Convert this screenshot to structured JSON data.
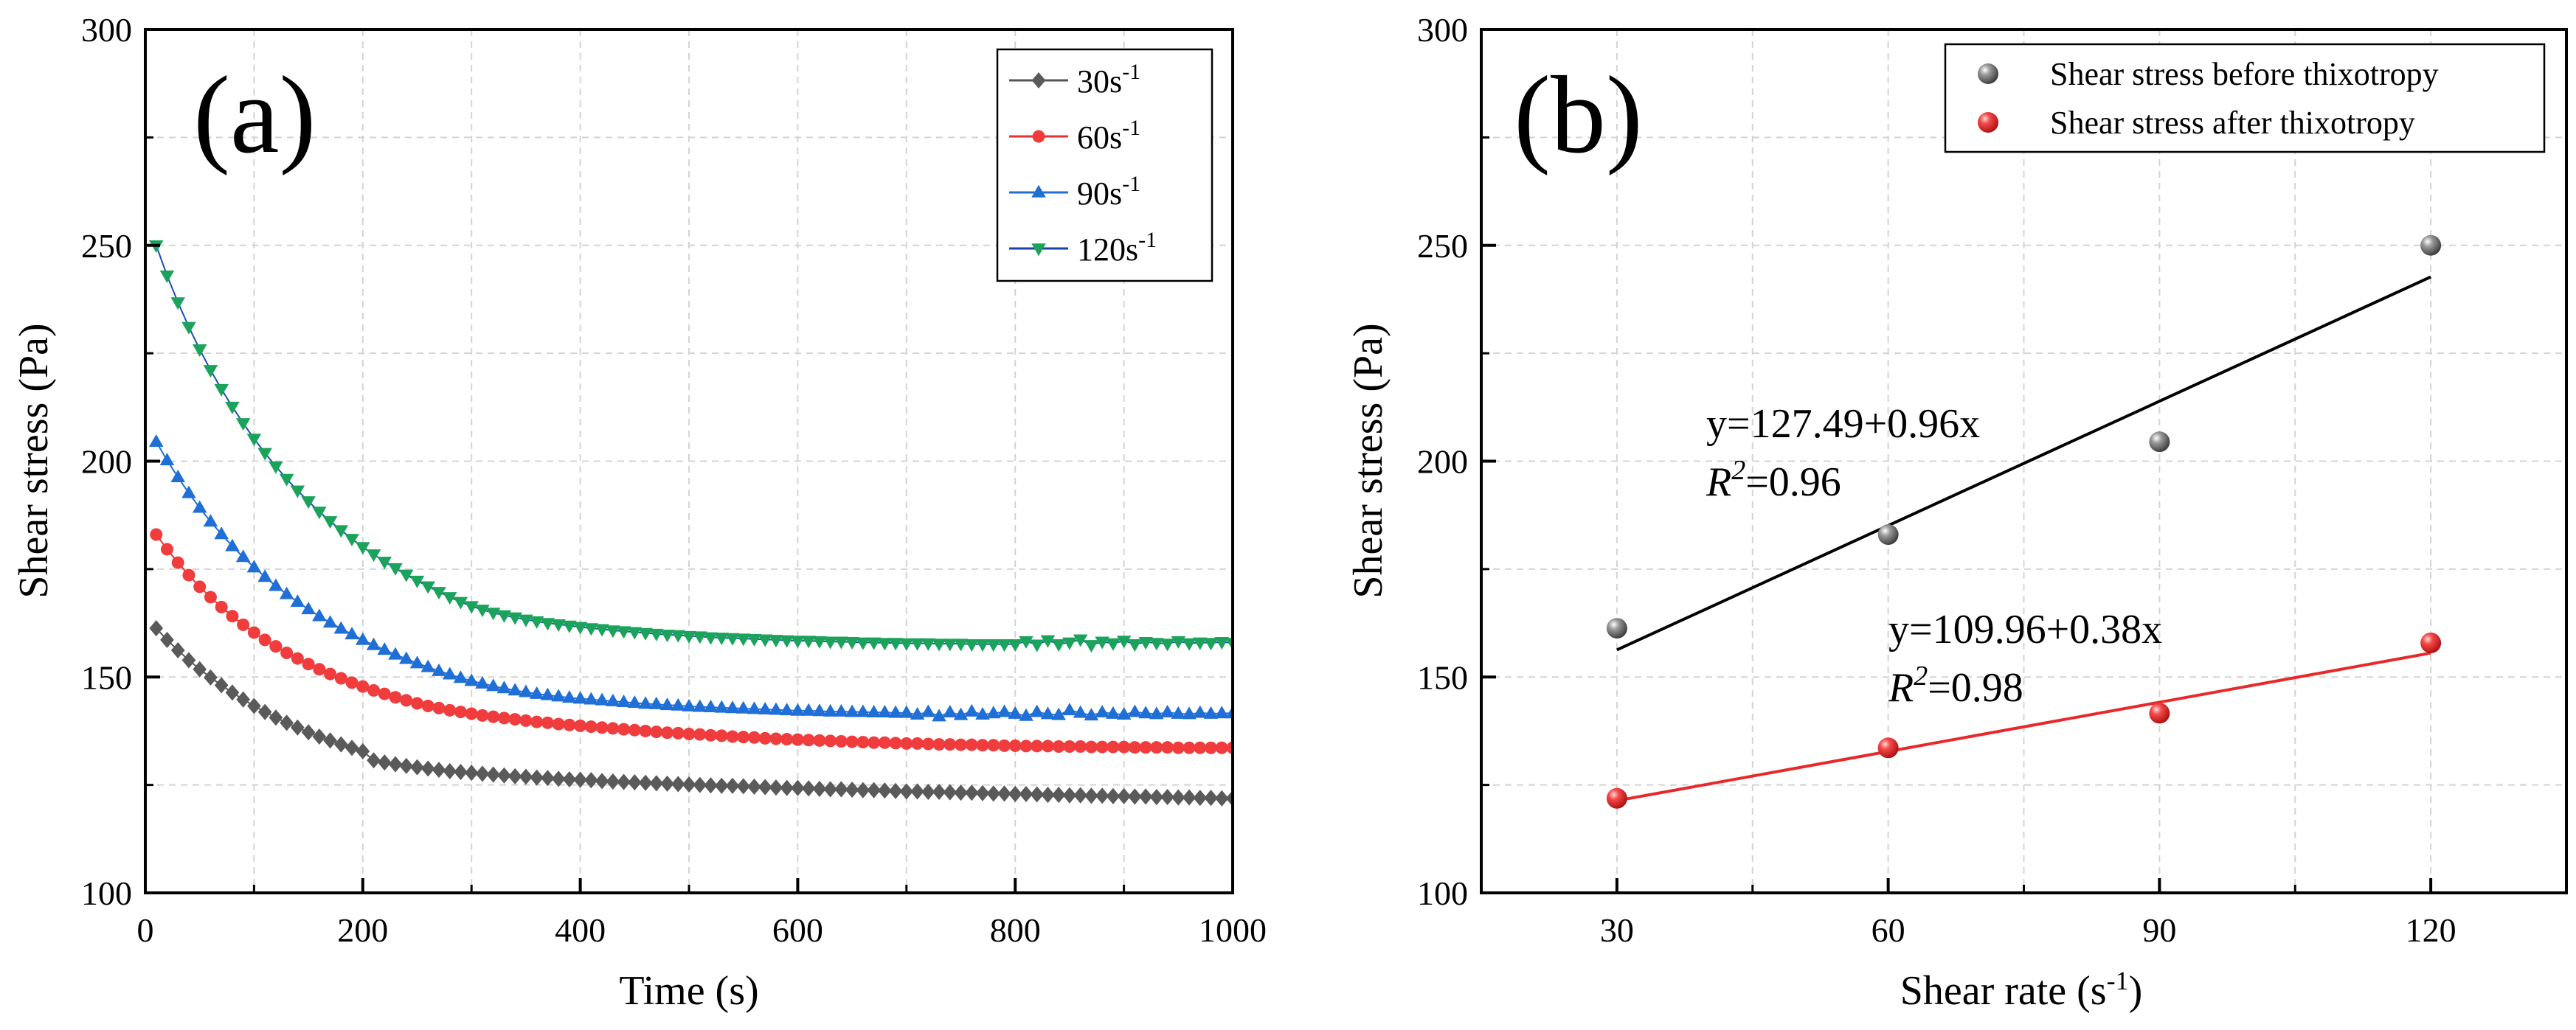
{
  "chart_data": [
    {
      "type": "line",
      "panel_label": "(a)",
      "xlabel": "Time (s)",
      "ylabel": "Shear stress (Pa)",
      "xlim": [
        0,
        1000
      ],
      "ylim": [
        100,
        300
      ],
      "xticks": [
        0,
        200,
        400,
        600,
        800,
        1000
      ],
      "yticks": [
        100,
        150,
        200,
        250,
        300
      ],
      "grid": true,
      "legend_position": "top-right",
      "legend": [
        {
          "base": "30s",
          "sup": "-1"
        },
        {
          "base": "60s",
          "sup": "-1"
        },
        {
          "base": "90s",
          "sup": "-1"
        },
        {
          "base": "120s",
          "sup": "-1"
        }
      ],
      "x": [
        10,
        20,
        30,
        40,
        50,
        60,
        70,
        80,
        90,
        100,
        110,
        120,
        130,
        140,
        150,
        160,
        170,
        180,
        190,
        200,
        210,
        220,
        230,
        240,
        250,
        260,
        270,
        280,
        290,
        300,
        310,
        320,
        330,
        340,
        350,
        360,
        370,
        380,
        390,
        400,
        410,
        420,
        430,
        440,
        450,
        460,
        470,
        480,
        490,
        500,
        510,
        520,
        530,
        540,
        550,
        560,
        570,
        580,
        590,
        600,
        610,
        620,
        630,
        640,
        650,
        660,
        670,
        680,
        690,
        700,
        710,
        720,
        730,
        740,
        750,
        760,
        770,
        780,
        790,
        800,
        810,
        820,
        830,
        840,
        850,
        860,
        870,
        880,
        890,
        900,
        910,
        920,
        930,
        940,
        950,
        960,
        970,
        980,
        990,
        1000
      ],
      "series": [
        {
          "name": "30s-1",
          "marker": "diamond",
          "color": "#5a5a5a",
          "values": [
            161.3,
            158.6,
            156.2,
            153.9,
            151.8,
            149.9,
            148.1,
            146.4,
            144.8,
            143.3,
            141.9,
            140.6,
            139.4,
            138.3,
            137.2,
            136.2,
            135.3,
            134.4,
            133.6,
            132.8,
            130.7,
            130.2,
            129.8,
            129.4,
            129.1,
            128.8,
            128.5,
            128.2,
            128.0,
            127.8,
            127.6,
            127.4,
            127.2,
            127.0,
            126.9,
            126.7,
            126.6,
            126.4,
            126.3,
            126.2,
            126.1,
            125.9,
            125.8,
            125.7,
            125.6,
            125.5,
            125.4,
            125.3,
            125.2,
            125.1,
            125.0,
            124.9,
            124.8,
            124.8,
            124.7,
            124.6,
            124.5,
            124.4,
            124.3,
            124.3,
            124.2,
            124.1,
            124.0,
            124.0,
            123.9,
            123.8,
            123.8,
            123.7,
            123.6,
            123.5,
            123.5,
            123.4,
            123.4,
            123.3,
            123.2,
            123.2,
            123.1,
            123.0,
            123.0,
            122.9,
            122.9,
            122.8,
            122.7,
            122.7,
            122.6,
            122.6,
            122.5,
            122.5,
            122.4,
            122.4,
            122.3,
            122.3,
            122.2,
            122.2,
            122.1,
            122.1,
            122.0,
            122.0,
            121.9,
            121.9
          ]
        },
        {
          "name": "60s-1",
          "marker": "circle",
          "color": "#f03c3c",
          "values": [
            183.0,
            179.6,
            176.5,
            173.6,
            170.9,
            168.5,
            166.2,
            164.1,
            162.1,
            160.3,
            158.6,
            157.1,
            155.6,
            154.3,
            153.0,
            151.8,
            150.7,
            149.7,
            148.7,
            147.8,
            146.9,
            146.1,
            145.3,
            144.6,
            143.9,
            143.3,
            142.8,
            142.3,
            141.9,
            141.5,
            141.1,
            140.8,
            140.5,
            140.2,
            139.9,
            139.6,
            139.4,
            139.1,
            138.9,
            138.7,
            138.5,
            138.3,
            138.1,
            137.9,
            137.7,
            137.5,
            137.3,
            137.1,
            137.0,
            136.8,
            136.7,
            136.5,
            136.4,
            136.2,
            136.1,
            136.0,
            135.8,
            135.7,
            135.6,
            135.5,
            135.4,
            135.3,
            135.2,
            135.1,
            135.0,
            134.9,
            134.8,
            134.8,
            134.7,
            134.6,
            134.6,
            134.5,
            134.4,
            134.4,
            134.3,
            134.3,
            134.2,
            134.2,
            134.1,
            134.1,
            134.0,
            134.0,
            134.0,
            133.9,
            133.9,
            133.9,
            133.8,
            133.8,
            133.8,
            133.8,
            133.7,
            133.7,
            133.7,
            133.7,
            133.6,
            133.6,
            133.6,
            133.6,
            133.6,
            133.6
          ]
        },
        {
          "name": "90s-1",
          "marker": "triangle-up",
          "color": "#1f6fd6",
          "values": [
            204.5,
            200.2,
            196.3,
            192.6,
            189.2,
            186.0,
            183.1,
            180.3,
            177.8,
            175.4,
            173.2,
            171.1,
            169.2,
            167.4,
            165.7,
            164.1,
            162.6,
            161.2,
            159.9,
            158.6,
            157.4,
            156.3,
            155.2,
            154.2,
            153.2,
            152.3,
            151.4,
            150.6,
            149.8,
            149.1,
            148.5,
            147.9,
            147.4,
            146.9,
            146.5,
            146.1,
            145.8,
            145.5,
            145.2,
            145.0,
            144.8,
            144.6,
            144.4,
            144.2,
            144.0,
            143.8,
            143.7,
            143.5,
            143.4,
            143.2,
            143.1,
            143.0,
            142.9,
            142.8,
            142.7,
            142.6,
            142.5,
            142.4,
            142.3,
            142.2,
            142.2,
            142.1,
            142.0,
            142.0,
            141.9,
            141.9,
            141.8,
            141.8,
            141.7,
            141.7,
            141.3,
            141.9,
            140.9,
            141.8,
            141.2,
            142.0,
            141.3,
            141.6,
            141.9,
            141.5,
            141.0,
            141.9,
            141.4,
            141.2,
            142.3,
            141.7,
            141.1,
            141.8,
            141.5,
            141.3,
            141.9,
            141.6,
            141.4,
            141.8,
            141.5,
            141.4,
            141.7,
            141.5,
            141.6,
            141.6
          ]
        },
        {
          "name": "120s-1",
          "marker": "triangle-down",
          "color": "#1ba35c",
          "values": [
            250.0,
            243.0,
            236.8,
            231.1,
            225.9,
            221.1,
            216.7,
            212.6,
            208.8,
            205.2,
            201.9,
            198.8,
            195.9,
            193.2,
            190.7,
            188.3,
            186.1,
            184.0,
            182.0,
            180.1,
            178.4,
            176.7,
            175.2,
            173.7,
            172.3,
            171.0,
            169.7,
            168.5,
            167.4,
            166.4,
            165.6,
            164.9,
            164.3,
            163.8,
            163.3,
            162.9,
            162.5,
            162.2,
            161.9,
            161.6,
            161.3,
            161.1,
            160.8,
            160.6,
            160.4,
            160.2,
            160.0,
            159.8,
            159.7,
            159.5,
            159.4,
            159.2,
            159.1,
            159.0,
            158.9,
            158.8,
            158.7,
            158.6,
            158.5,
            158.4,
            158.4,
            158.3,
            158.2,
            158.2,
            158.1,
            158.0,
            158.0,
            157.9,
            157.9,
            157.8,
            157.8,
            157.8,
            157.7,
            157.7,
            157.7,
            157.6,
            157.6,
            157.6,
            157.6,
            157.6,
            158.3,
            157.5,
            158.5,
            157.6,
            158.0,
            158.7,
            157.4,
            158.2,
            157.8,
            158.4,
            157.6,
            158.1,
            157.9,
            157.7,
            158.3,
            157.8,
            158.0,
            157.9,
            158.1,
            157.9
          ]
        }
      ]
    },
    {
      "type": "scatter",
      "panel_label": "(b)",
      "xlabel": {
        "base": "Shear rate (s",
        "sup": "-1",
        "tail": ")"
      },
      "ylabel": "Shear stress (Pa)",
      "xlim": [
        15,
        135
      ],
      "ylim": [
        100,
        300
      ],
      "xticks": [
        30,
        60,
        90,
        120
      ],
      "yticks": [
        100,
        150,
        200,
        250,
        300
      ],
      "grid": true,
      "legend_position": "top-right",
      "series": [
        {
          "name": "Shear stress before thixotropy",
          "color": "#707070",
          "x": [
            30,
            60,
            90,
            120
          ],
          "y": [
            161.3,
            183.0,
            204.5,
            250.0
          ],
          "fit": {
            "intercept": 127.49,
            "slope": 0.96,
            "x_range": [
              30,
              120
            ]
          },
          "equation": "y=127.49+0.96x",
          "r2": {
            "prefix": "R",
            "sup": "2",
            "value": "=0.96"
          }
        },
        {
          "name": "Shear stress after thixotropy",
          "color": "#e8282a",
          "x": [
            30,
            60,
            90,
            120
          ],
          "y": [
            121.9,
            133.6,
            141.6,
            157.9
          ],
          "fit": {
            "intercept": 109.96,
            "slope": 0.38,
            "x_range": [
              30,
              120
            ]
          },
          "equation": "y=109.96+0.38x",
          "r2": {
            "prefix": "R",
            "sup": "2",
            "value": "=0.98"
          }
        }
      ]
    }
  ]
}
